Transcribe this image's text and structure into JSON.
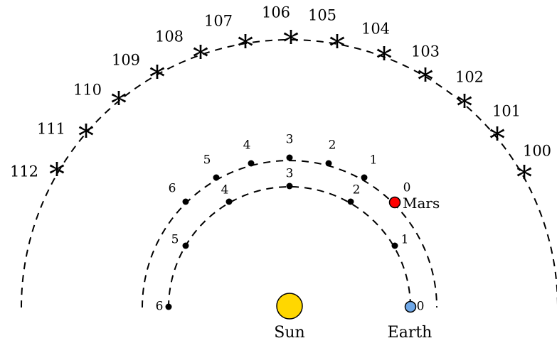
{
  "stars": {
    "labels": [
      "100",
      "101",
      "102",
      "103",
      "104",
      "105",
      "106",
      "107",
      "108",
      "109",
      "110",
      "111",
      "112"
    ],
    "glyph": "*"
  },
  "mars_orbit": {
    "points": [
      "0",
      "1",
      "2",
      "3",
      "4",
      "5",
      "6"
    ],
    "point_color": "#ff0000"
  },
  "earth_orbit": {
    "points": [
      "0",
      "1",
      "2",
      "3",
      "4",
      "5",
      "6"
    ],
    "point_color": "#6fa8e8"
  },
  "bodies": {
    "sun_label": "Sun",
    "earth_label": "Earth",
    "mars_label": "Mars",
    "sun_color": "#ffd700",
    "earth_color": "#6fa8e8",
    "mars_color": "#ff0000"
  }
}
